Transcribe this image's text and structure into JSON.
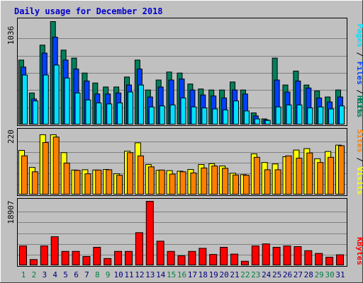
{
  "colors": {
    "background": "#c0c0c0",
    "plot_bg": "#c0c0c0",
    "title": "#0000cc",
    "grid": "#808080",
    "hits": "#00805c",
    "files": "#0040ff",
    "pages": "#00e0ff",
    "visits": "#ffff00",
    "sites": "#ff8000",
    "kbytes": "#ff0000",
    "day_weekday": "#000080",
    "day_weekend": "#008040"
  },
  "chart_data": [
    {
      "type": "bar",
      "title": "Daily usage for December 2018",
      "ymax_label": "1036",
      "ylim": [
        0,
        1036
      ],
      "legend": [
        "Pages",
        "Files",
        "Hits"
      ],
      "series": [
        {
          "name": "Hits",
          "values": [
            650,
            320,
            800,
            1036,
            750,
            670,
            520,
            420,
            380,
            380,
            480,
            650,
            350,
            450,
            530,
            520,
            410,
            360,
            350,
            350,
            430,
            350,
            120,
            60,
            670,
            400,
            540,
            400,
            340,
            280,
            350
          ]
        },
        {
          "name": "Files",
          "values": [
            580,
            260,
            720,
            880,
            650,
            560,
            440,
            310,
            310,
            320,
            400,
            560,
            280,
            380,
            450,
            460,
            350,
            300,
            290,
            270,
            350,
            310,
            90,
            50,
            450,
            330,
            440,
            370,
            270,
            230,
            280
          ]
        },
        {
          "name": "Pages",
          "values": [
            500,
            240,
            500,
            600,
            470,
            320,
            250,
            220,
            210,
            220,
            330,
            400,
            180,
            190,
            200,
            270,
            180,
            170,
            160,
            150,
            240,
            140,
            60,
            45,
            180,
            200,
            200,
            170,
            180,
            160,
            190
          ]
        }
      ]
    },
    {
      "type": "bar",
      "ymax_label": "220",
      "ylim": [
        0,
        220
      ],
      "legend": [
        "Sites",
        "Visits"
      ],
      "series": [
        {
          "name": "Visits",
          "values": [
            154,
            95,
            208,
            208,
            146,
            86,
            87,
            86,
            88,
            73,
            151,
            180,
            105,
            85,
            84,
            82,
            88,
            105,
            108,
            100,
            75,
            70,
            142,
            112,
            107,
            132,
            155,
            160,
            125,
            150,
            172
          ]
        },
        {
          "name": "Sites",
          "values": [
            135,
            80,
            181,
            200,
            110,
            85,
            73,
            86,
            87,
            68,
            146,
            135,
            97,
            86,
            72,
            80,
            76,
            93,
            100,
            92,
            69,
            68,
            130,
            87,
            87,
            135,
            127,
            145,
            112,
            130,
            170
          ]
        }
      ]
    },
    {
      "type": "bar",
      "ymax_label": "18907",
      "ylim": [
        0,
        18907
      ],
      "legend": [
        "KBytes"
      ],
      "series": [
        {
          "name": "KBytes",
          "values": [
            5800,
            1800,
            5800,
            8500,
            4200,
            4200,
            2700,
            5400,
            2100,
            4200,
            4200,
            9700,
            18907,
            7200,
            4200,
            2900,
            4200,
            5100,
            3300,
            5400,
            3400,
            1300,
            5800,
            6400,
            5400,
            5800,
            5600,
            4400,
            3600,
            2500,
            3200
          ]
        }
      ]
    }
  ],
  "days": [
    "1",
    "2",
    "3",
    "4",
    "5",
    "6",
    "7",
    "8",
    "9",
    "10",
    "11",
    "12",
    "13",
    "14",
    "15",
    "16",
    "17",
    "18",
    "19",
    "20",
    "21",
    "22",
    "23",
    "24",
    "25",
    "26",
    "27",
    "28",
    "29",
    "30",
    "31"
  ],
  "weekend_days": [
    1,
    2,
    8,
    9,
    15,
    16,
    22,
    23,
    29,
    30
  ]
}
